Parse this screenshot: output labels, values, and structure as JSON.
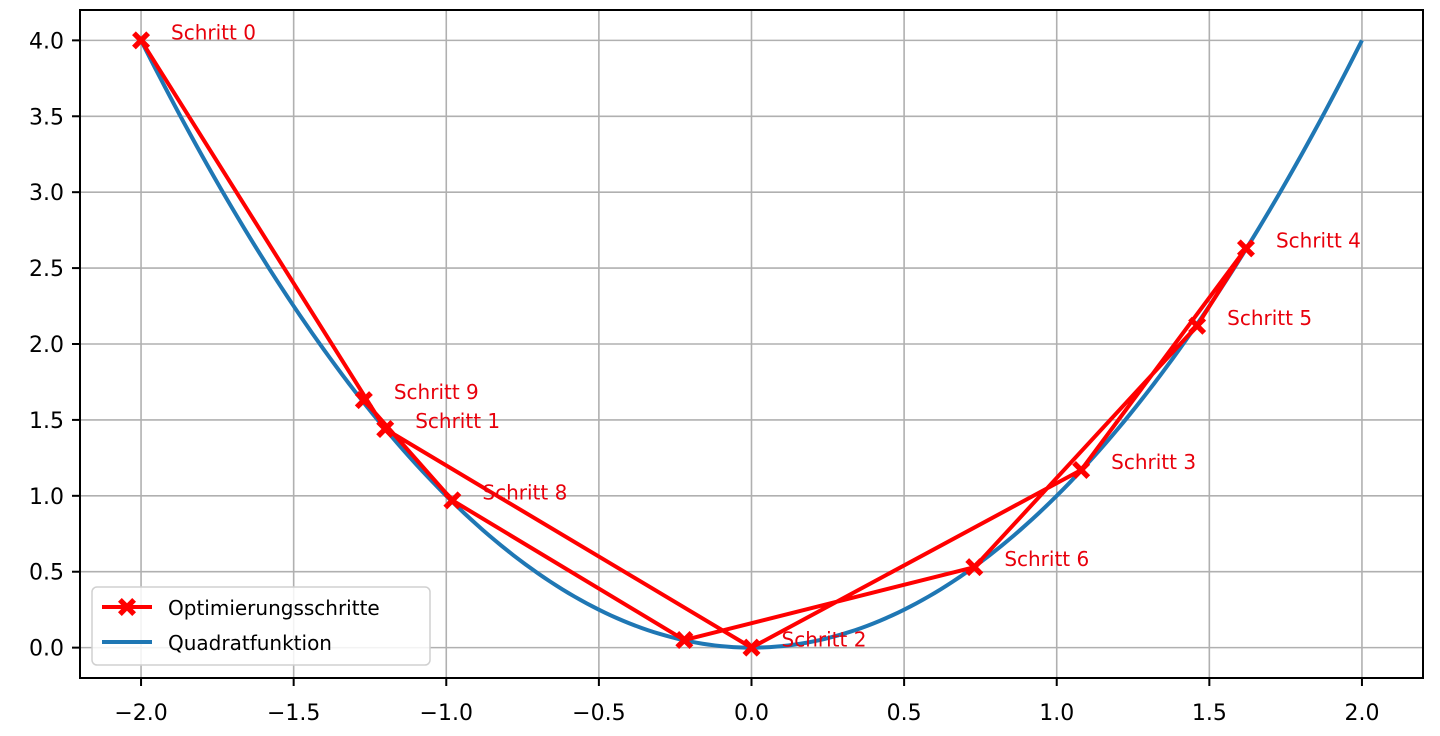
{
  "chart_data": {
    "type": "line",
    "title": "",
    "xlabel": "",
    "ylabel": "",
    "xlim": [
      -2.2,
      2.2
    ],
    "ylim": [
      -0.2,
      4.2
    ],
    "grid": true,
    "legend_position": "lower left",
    "x_ticks": [
      -2.0,
      -1.5,
      -1.0,
      -0.5,
      0.0,
      0.5,
      1.0,
      1.5,
      2.0
    ],
    "x_tick_labels": [
      "−2.0",
      "−1.5",
      "−1.0",
      "−0.5",
      "0.0",
      "0.5",
      "1.0",
      "1.5",
      "2.0"
    ],
    "y_ticks": [
      0.0,
      0.5,
      1.0,
      1.5,
      2.0,
      2.5,
      3.0,
      3.5,
      4.0
    ],
    "y_tick_labels": [
      "0.0",
      "0.5",
      "1.0",
      "1.5",
      "2.0",
      "2.5",
      "3.0",
      "3.5",
      "4.0"
    ],
    "series": [
      {
        "name": "Optimierungsschritte",
        "type": "line+marker",
        "color": "#ff0000",
        "marker": "X",
        "x": [
          -2.0,
          -1.2,
          0.0,
          1.08,
          1.62,
          1.46,
          0.73,
          -0.22,
          -0.98,
          -1.27
        ],
        "y": [
          4.0,
          1.44,
          0.0,
          1.17,
          2.63,
          2.12,
          0.53,
          0.05,
          0.97,
          1.63
        ]
      },
      {
        "name": "Quadratfunktion",
        "type": "line",
        "color": "#1f77b4",
        "function": "y = x^2",
        "x_range": [
          -2.0,
          2.0
        ]
      }
    ],
    "annotations": [
      {
        "text": "Schritt 0",
        "x": -2.0,
        "y": 4.0
      },
      {
        "text": "Schritt 1",
        "x": -1.2,
        "y": 1.44
      },
      {
        "text": "Schritt 2",
        "x": 0.0,
        "y": 0.0
      },
      {
        "text": "Schritt 3",
        "x": 1.08,
        "y": 1.17
      },
      {
        "text": "Schritt 4",
        "x": 1.62,
        "y": 2.63
      },
      {
        "text": "Schritt 5",
        "x": 1.46,
        "y": 2.12
      },
      {
        "text": "Schritt 6",
        "x": 0.73,
        "y": 0.53
      },
      {
        "text": "Schritt 8",
        "x": -0.98,
        "y": 0.97
      },
      {
        "text": "Schritt 9",
        "x": -1.27,
        "y": 1.63
      }
    ]
  },
  "legend": {
    "items": [
      {
        "label": "Optimierungsschritte",
        "color": "#ff0000"
      },
      {
        "label": "Quadratfunktion",
        "color": "#1f77b4"
      }
    ]
  }
}
